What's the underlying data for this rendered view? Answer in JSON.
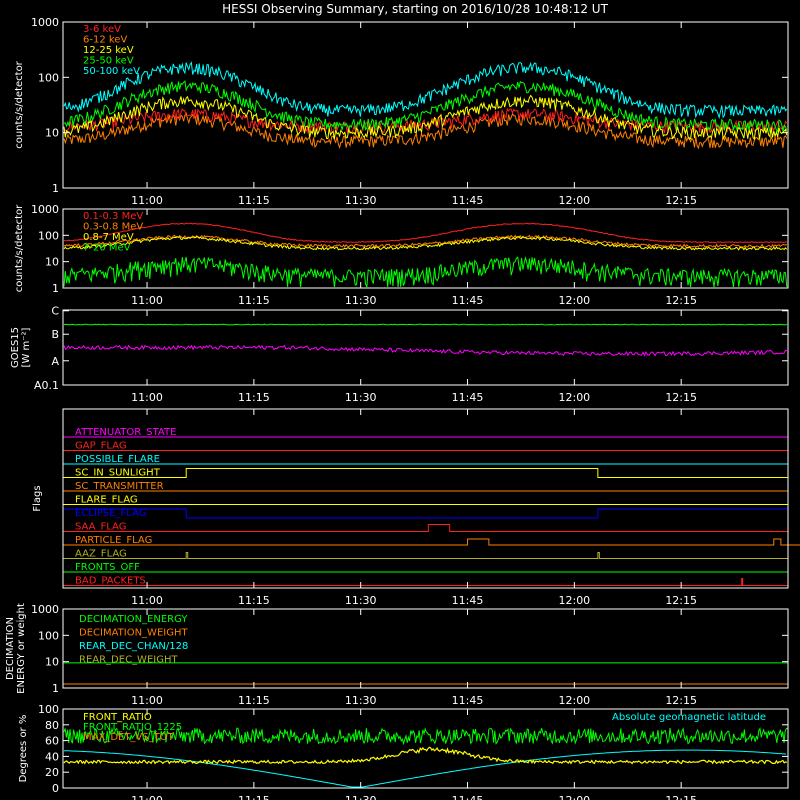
{
  "title": "HESSI Observing Summary, starting on 2016/10/28 10:48:12 UT",
  "time_axis": {
    "start": "10:48",
    "end": "12:30",
    "ticks": [
      "11:00",
      "11:15",
      "11:30",
      "11:45",
      "12:00",
      "12:15"
    ]
  },
  "colors": {
    "red": "#ff2020",
    "orange": "#ff8000",
    "yellow": "#ffff00",
    "green": "#00ff00",
    "cyan": "#00ffff",
    "magenta": "#ff00ff",
    "blue": "#0000ff",
    "olive": "#b0b020"
  },
  "chart_data": [
    {
      "type": "line",
      "ylabel": "counts/s/detector",
      "yscale": "log",
      "ylim": [
        1,
        1000
      ],
      "yticks": [
        "1",
        "10",
        "100",
        "1000"
      ],
      "legend_position": "top-left",
      "series": [
        {
          "name": "3-6 keV",
          "color": "red",
          "base": 13,
          "peak": 22
        },
        {
          "name": "6-12 keV",
          "color": "orange",
          "base": 7,
          "peak": 18
        },
        {
          "name": "12-25 keV",
          "color": "yellow",
          "base": 10,
          "peak": 38
        },
        {
          "name": "25-50 keV",
          "color": "green",
          "base": 14,
          "peak": 70
        },
        {
          "name": "50-100 keV",
          "color": "cyan",
          "base": 25,
          "peak": 150
        }
      ]
    },
    {
      "type": "line",
      "ylabel": "counts/s/detector",
      "yscale": "log",
      "ylim": [
        1,
        1000
      ],
      "yticks": [
        "1",
        "10",
        "100",
        "1000"
      ],
      "legend_position": "top-left",
      "series": [
        {
          "name": "0.1-0.3 MeV",
          "color": "red",
          "base": 55,
          "peak": 280
        },
        {
          "name": "0.3-0.8 MeV",
          "color": "orange",
          "base": 40,
          "peak": 90
        },
        {
          "name": "0.8-7 MeV",
          "color": "yellow",
          "base": 32,
          "peak": 80
        },
        {
          "name": "7-20 MeV",
          "color": "green",
          "base": 3,
          "peak": 9
        }
      ]
    },
    {
      "type": "line",
      "ylabel": "GOES15 [W m-2]",
      "ylabel_line1": "GOES15",
      "ylabel_line2": "[W m⁻²]",
      "yscale": "log",
      "ylim": [
        0.1,
        3
      ],
      "yticks": [
        "A0.1",
        "A",
        "B",
        "C"
      ],
      "series": [
        {
          "color": "green",
          "level": 1.55
        },
        {
          "color": "magenta",
          "level": 0.55
        }
      ]
    },
    {
      "type": "line",
      "ylabel": "Flags",
      "flags": [
        {
          "label": "ATTENUATOR_STATE",
          "color": "magenta"
        },
        {
          "label": "GAP_FLAG",
          "color": "red"
        },
        {
          "label": "POSSIBLE_FLARE",
          "color": "cyan"
        },
        {
          "label": "SC_IN_SUNLIGHT",
          "color": "yellow"
        },
        {
          "label": "SC_TRANSMITTER",
          "color": "orange"
        },
        {
          "label": "FLARE_FLAG",
          "color": "yellow"
        },
        {
          "label": "ECLIPSE_FLAG",
          "color": "blue"
        },
        {
          "label": "SAA_FLAG",
          "color": "red"
        },
        {
          "label": "PARTICLE_FLAG",
          "color": "orange"
        },
        {
          "label": "AAZ_FLAG",
          "color": "olive"
        },
        {
          "label": "FRONTS_OFF",
          "color": "green"
        },
        {
          "label": "BAD_PACKETS",
          "color": "red"
        }
      ]
    },
    {
      "type": "line",
      "ylabel": "DECIMATION ENERGY or weight",
      "ylabel_line1": "DECIMATION",
      "ylabel_line2": "ENERGY or weight",
      "yscale": "log",
      "ylim": [
        1,
        1000
      ],
      "yticks": [
        "1",
        "10",
        "100",
        "1000"
      ],
      "legend_position": "top-left",
      "series": [
        {
          "name": "DECIMATION_ENERGY",
          "color": "green",
          "level": 9
        },
        {
          "name": "DECIMATION_WEIGHT",
          "color": "orange",
          "level": 1
        },
        {
          "name": "REAR_DEC_CHAN/128",
          "color": "cyan"
        },
        {
          "name": "REAR_DEC_WEIGHT",
          "color": "olive"
        }
      ]
    },
    {
      "type": "line",
      "ylabel": "Degrees or %",
      "ylim": [
        0,
        100
      ],
      "yticks": [
        "0",
        "20",
        "40",
        "60",
        "80",
        "100"
      ],
      "annotation": "Absolute geomagnetic latitude",
      "series": [
        {
          "name": "FRONT_RATIO",
          "color": "yellow"
        },
        {
          "name": "FRONT_RATIO_1225",
          "color": "green"
        },
        {
          "name": "MAX_DET_VS_TOT",
          "color": "orange"
        }
      ]
    }
  ]
}
